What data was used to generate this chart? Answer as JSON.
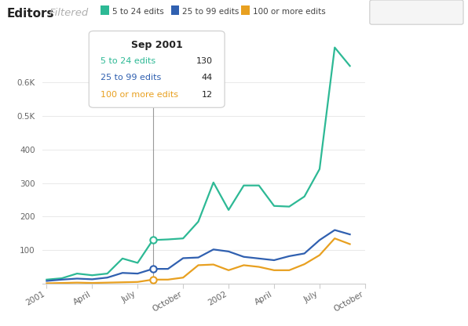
{
  "title": "Editors",
  "title_filtered": "Filtered",
  "legend_labels": [
    "5 to 24 edits",
    "25 to 99 edits",
    "100 or more edits"
  ],
  "line_colors": [
    "#2db995",
    "#3060b0",
    "#e8a020"
  ],
  "background_color": "#ffffff",
  "x_tick_labels": [
    "2001",
    "April",
    "July",
    "October",
    "2002",
    "April",
    "July",
    "October"
  ],
  "x_tick_positions": [
    0,
    3,
    6,
    9,
    12,
    15,
    18,
    21
  ],
  "ytick_labels": [
    "0.6K",
    "0.5K",
    "400",
    "300",
    "200",
    "100"
  ],
  "ytick_values": [
    600,
    500,
    400,
    300,
    200,
    100
  ],
  "series_5_24": [
    12,
    16,
    30,
    25,
    30,
    75,
    62,
    130,
    132,
    135,
    185,
    302,
    220,
    293,
    293,
    232,
    230,
    260,
    342,
    705,
    650
  ],
  "series_25_99": [
    8,
    12,
    15,
    13,
    18,
    32,
    30,
    44,
    44,
    76,
    78,
    102,
    96,
    80,
    75,
    70,
    82,
    90,
    130,
    160,
    147
  ],
  "series_100_more": [
    1,
    2,
    3,
    2,
    3,
    4,
    5,
    12,
    12,
    18,
    55,
    57,
    40,
    55,
    50,
    40,
    40,
    58,
    85,
    135,
    118
  ],
  "x_count": 21,
  "tooltip_x_idx": 7,
  "tooltip_title": "Sep 2001",
  "tooltip_vals": [
    130,
    44,
    12
  ],
  "ylim": [
    0,
    730
  ],
  "toolbar_bg": "#f0f0f0"
}
